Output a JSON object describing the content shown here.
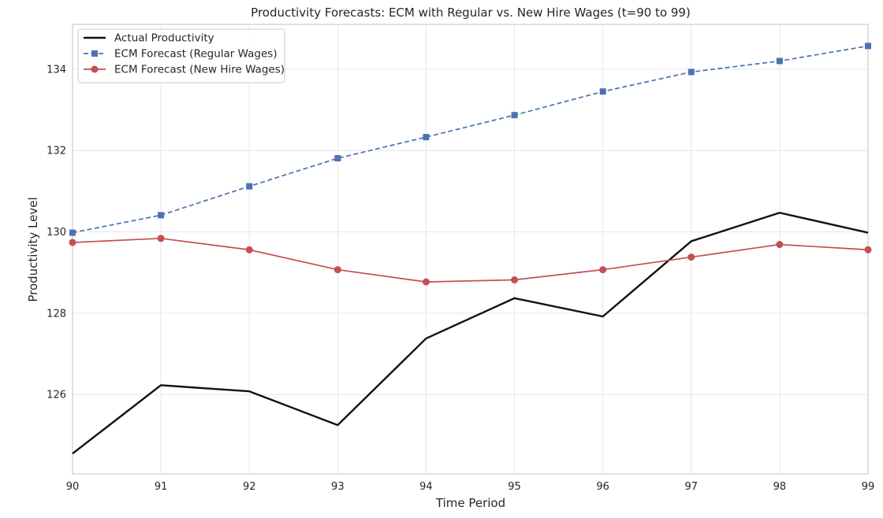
{
  "chart_data": {
    "type": "line",
    "title": "Productivity Forecasts: ECM with Regular vs. New Hire Wages (t=90 to 99)",
    "xlabel": "Time Period",
    "ylabel": "Productivity Level",
    "x": [
      90,
      91,
      92,
      93,
      94,
      95,
      96,
      97,
      98,
      99
    ],
    "xlim": [
      90,
      99
    ],
    "ylim": [
      124.05,
      135.1
    ],
    "yticks": [
      126,
      128,
      130,
      132,
      134
    ],
    "grid": true,
    "legend_position": "top-left",
    "series": [
      {
        "name": "Actual Productivity",
        "color": "#111111",
        "line_style": "solid",
        "marker": "none",
        "values": [
          124.55,
          126.23,
          126.08,
          125.25,
          127.38,
          128.37,
          127.92,
          129.77,
          130.47,
          129.98
        ]
      },
      {
        "name": "ECM Forecast (Regular Wages)",
        "color": "#4c72b0",
        "line_style": "dashed",
        "marker": "square",
        "values": [
          129.98,
          130.41,
          131.12,
          131.81,
          132.33,
          132.87,
          133.45,
          133.93,
          134.2,
          134.57
        ]
      },
      {
        "name": "ECM Forecast (New Hire Wages)",
        "color": "#c44e52",
        "line_style": "solid",
        "marker": "circle",
        "values": [
          129.74,
          129.84,
          129.56,
          129.07,
          128.77,
          128.82,
          129.07,
          129.38,
          129.69,
          129.56
        ]
      }
    ]
  }
}
